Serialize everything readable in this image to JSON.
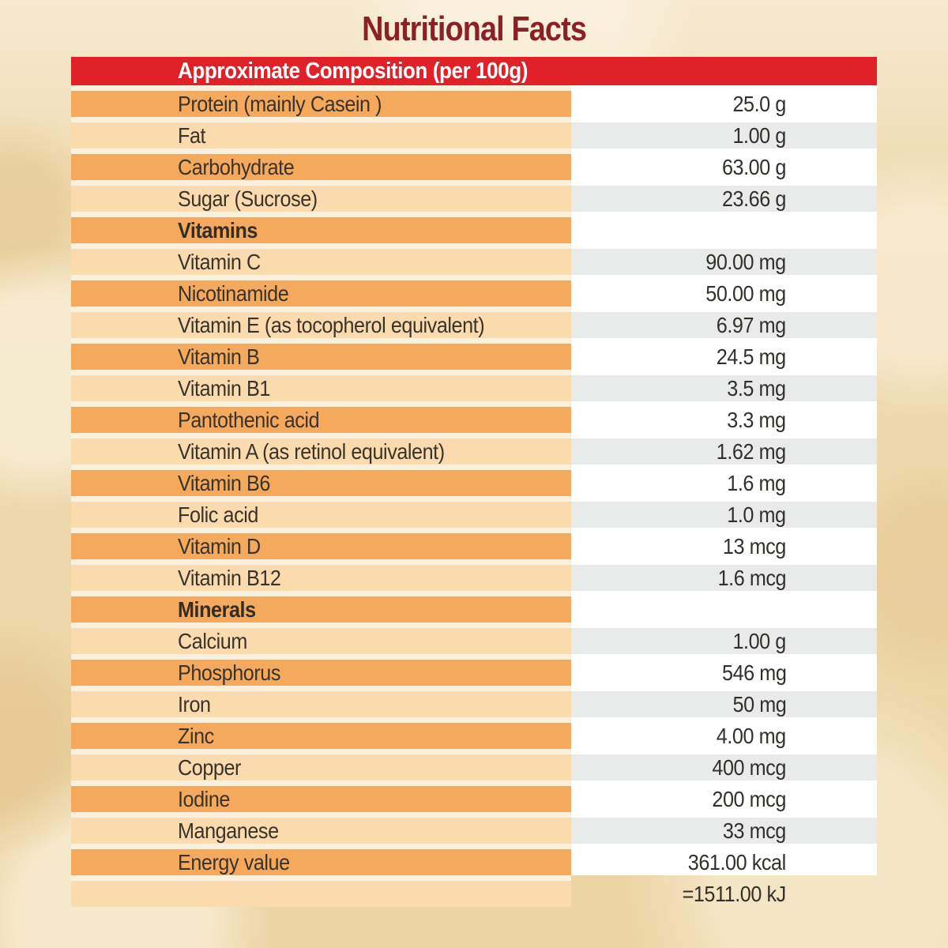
{
  "page": {
    "title": "Nutritional Facts"
  },
  "colors": {
    "header_bar": "#E12128",
    "title_text": "#8B2025",
    "row_dark_orange": "#F5A95C",
    "row_light_peach": "#FBDBAE",
    "value_gray": "#E9EAEA",
    "value_white": "#FFFFFF",
    "row_gap": "#FCF0DB",
    "background_cream": "#EDD7AB"
  },
  "table": {
    "header_label": "Approximate Composition (per 100g)",
    "rows": [
      {
        "label": "Protein (mainly Casein )",
        "value": "25.0 g",
        "variant": "dark"
      },
      {
        "label": "Fat",
        "value": "1.00 g",
        "variant": "light"
      },
      {
        "label": "Carbohydrate",
        "value": "63.00 g",
        "variant": "dark"
      },
      {
        "label": "Sugar (Sucrose)",
        "value": "23.66 g",
        "variant": "light"
      },
      {
        "label": "Vitamins",
        "value": "",
        "variant": "section"
      },
      {
        "label": "Vitamin C",
        "value": "90.00 mg",
        "variant": "light"
      },
      {
        "label": "Nicotinamide",
        "value": "50.00 mg",
        "variant": "dark"
      },
      {
        "label": "Vitamin E (as tocopherol equivalent)",
        "value": "6.97 mg",
        "variant": "light"
      },
      {
        "label": "Vitamin B",
        "value": "24.5 mg",
        "variant": "dark"
      },
      {
        "label": "Vitamin B1",
        "value": "3.5 mg",
        "variant": "light"
      },
      {
        "label": "Pantothenic acid",
        "value": "3.3 mg",
        "variant": "dark"
      },
      {
        "label": "Vitamin A (as retinol equivalent)",
        "value": "1.62 mg",
        "variant": "light"
      },
      {
        "label": "Vitamin B6",
        "value": "1.6 mg",
        "variant": "dark"
      },
      {
        "label": "Folic acid",
        "value": "1.0 mg",
        "variant": "light"
      },
      {
        "label": "Vitamin D",
        "value": "13 mcg",
        "variant": "dark"
      },
      {
        "label": "Vitamin B12",
        "value": "1.6 mcg",
        "variant": "light"
      },
      {
        "label": "Minerals",
        "value": "",
        "variant": "section"
      },
      {
        "label": "Calcium",
        "value": "1.00 g",
        "variant": "light"
      },
      {
        "label": "Phosphorus",
        "value": "546 mg",
        "variant": "dark"
      },
      {
        "label": "Iron",
        "value": "50 mg",
        "variant": "light"
      },
      {
        "label": "Zinc",
        "value": "4.00 mg",
        "variant": "dark"
      },
      {
        "label": "Copper",
        "value": "400 mcg",
        "variant": "light"
      },
      {
        "label": "Iodine",
        "value": "200 mcg",
        "variant": "dark"
      },
      {
        "label": "Manganese",
        "value": "33 mcg",
        "variant": "light"
      },
      {
        "label": "Energy value",
        "value": "361.00 kcal",
        "variant": "dark"
      },
      {
        "label": "",
        "value": "=1511.00 kJ",
        "variant": "footer"
      }
    ]
  }
}
